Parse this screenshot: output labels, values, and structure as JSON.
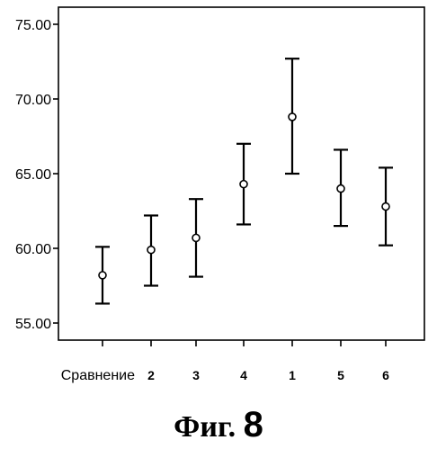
{
  "chart_data": {
    "type": "scatter",
    "style": "error-bar",
    "categories": [
      "Сравнение",
      "2",
      "3",
      "4",
      "1",
      "5",
      "6"
    ],
    "series": [
      {
        "means": [
          58.2,
          59.9,
          60.7,
          64.3,
          68.8,
          64.0,
          62.8
        ],
        "lower": [
          56.3,
          57.5,
          58.1,
          61.6,
          65.0,
          61.5,
          60.2
        ],
        "upper": [
          60.1,
          62.2,
          63.3,
          67.0,
          72.7,
          66.6,
          65.4
        ]
      }
    ],
    "yticks": [
      "55.00",
      "60.00",
      "65.00",
      "70.00",
      "75.00"
    ],
    "ylim": [
      54.0,
      76.0
    ],
    "grid": false,
    "colors": {
      "marks": "#000000",
      "background": "#ffffff"
    }
  },
  "caption": {
    "word": "Фиг.",
    "number": "8"
  }
}
